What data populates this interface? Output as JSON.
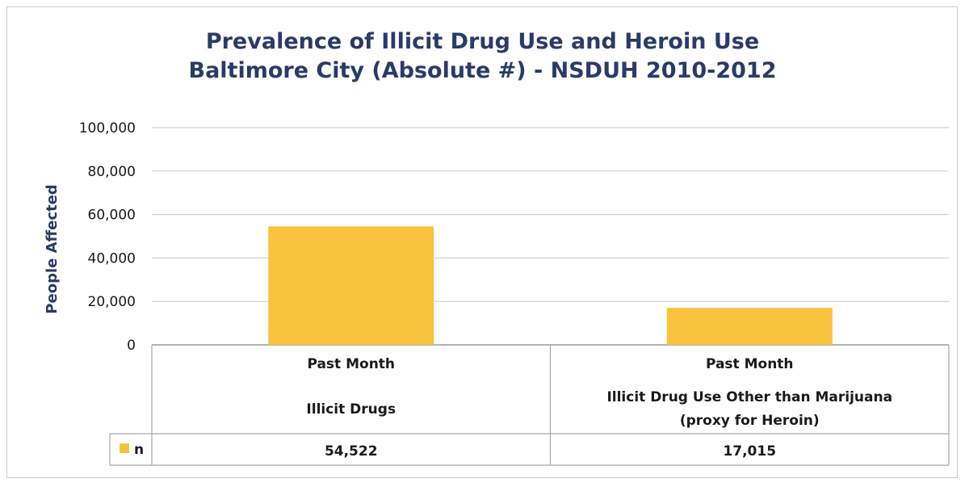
{
  "chart_data": {
    "type": "bar",
    "title_line1": "Prevalence of Illicit Drug Use and Heroin Use",
    "title_line2": "Baltimore City (Absolute #) - NSDUH 2010-2012",
    "ylabel": "People Affected",
    "ylim": [
      0,
      100000
    ],
    "yticks": [
      0,
      20000,
      40000,
      60000,
      80000,
      100000
    ],
    "ytick_labels": [
      "0",
      "20,000",
      "40,000",
      "60,000",
      "80,000",
      "100,000"
    ],
    "grid": true,
    "categories": [
      {
        "line1": "Past Month",
        "line2": "Illicit Drugs",
        "line3": ""
      },
      {
        "line1": "Past Month",
        "line2": "Illicit Drug Use Other than Marijuana",
        "line3": "(proxy for Heroin)"
      }
    ],
    "series": [
      {
        "name": "n",
        "values": [
          54522,
          17015
        ],
        "value_labels": [
          "54,522",
          "17,015"
        ],
        "color": "#f8c23c"
      }
    ],
    "legend_placement": "data table"
  }
}
